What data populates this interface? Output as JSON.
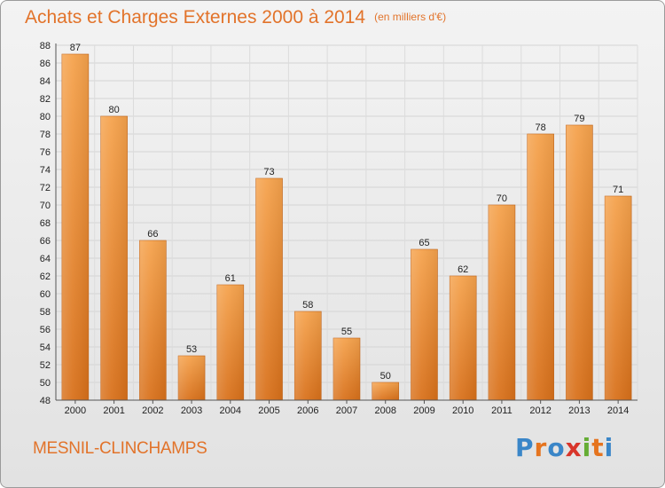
{
  "header": {
    "title": "Achats et Charges Externes 2000 à 2014",
    "unit": "(en milliers d'€)"
  },
  "footer": {
    "commune": "MESNIL-CLINCHAMPS",
    "brand": [
      "P",
      "r",
      "o",
      "x",
      "i",
      "t",
      "i"
    ],
    "brand_colors": [
      "#3a86c8",
      "#e5741f",
      "#3a86c8",
      "#d8352a",
      "#65ad34",
      "#e5741f",
      "#3a86c8"
    ]
  },
  "chart_data": {
    "type": "bar",
    "title": "Achats et Charges Externes 2000 à 2014",
    "subtitle": "(en milliers d'€)",
    "categories": [
      "2000",
      "2001",
      "2002",
      "2003",
      "2004",
      "2005",
      "2006",
      "2007",
      "2008",
      "2009",
      "2010",
      "2011",
      "2012",
      "2013",
      "2014"
    ],
    "values": [
      87,
      80,
      66,
      53,
      61,
      73,
      58,
      55,
      50,
      65,
      62,
      70,
      78,
      79,
      71
    ],
    "ylim": [
      48,
      88
    ],
    "ytick_step": 2,
    "grid": true,
    "bar_color_top": "#f5a24c",
    "bar_color_bottom": "#d8701a"
  }
}
